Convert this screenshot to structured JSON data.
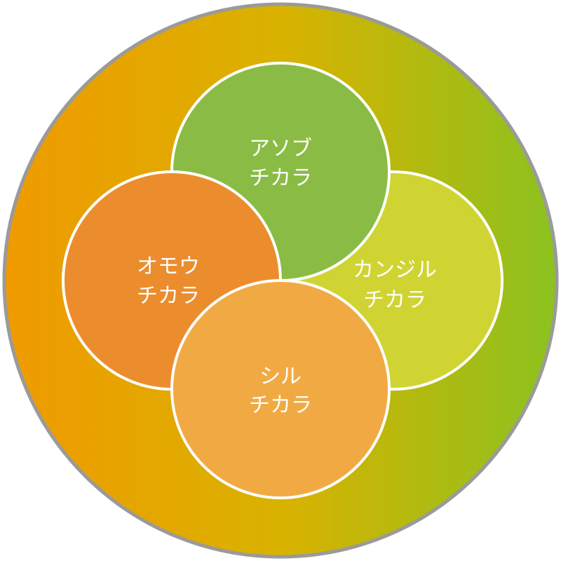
{
  "colors": {
    "outer_gradient_start": "#F09A00",
    "outer_gradient_mid": "#D9B200",
    "outer_gradient_end": "#8CC21F",
    "outer_border": "#9A9A9A",
    "circle_outline": "#FFFFFF",
    "label": "#FFFFFF"
  },
  "circles": [
    {
      "id": "asobu",
      "line1": "アソブ",
      "line2": "チカラ",
      "color": "#8ABC45"
    },
    {
      "id": "kanjiru",
      "line1": "カンジル",
      "line2": "チカラ",
      "color": "#CFD433"
    },
    {
      "id": "omou",
      "line1": "オモウ",
      "line2": "チカラ",
      "color": "#EB8D2D"
    },
    {
      "id": "shiru",
      "line1": "シル",
      "line2": "チカラ",
      "color": "#F1AA43"
    }
  ]
}
